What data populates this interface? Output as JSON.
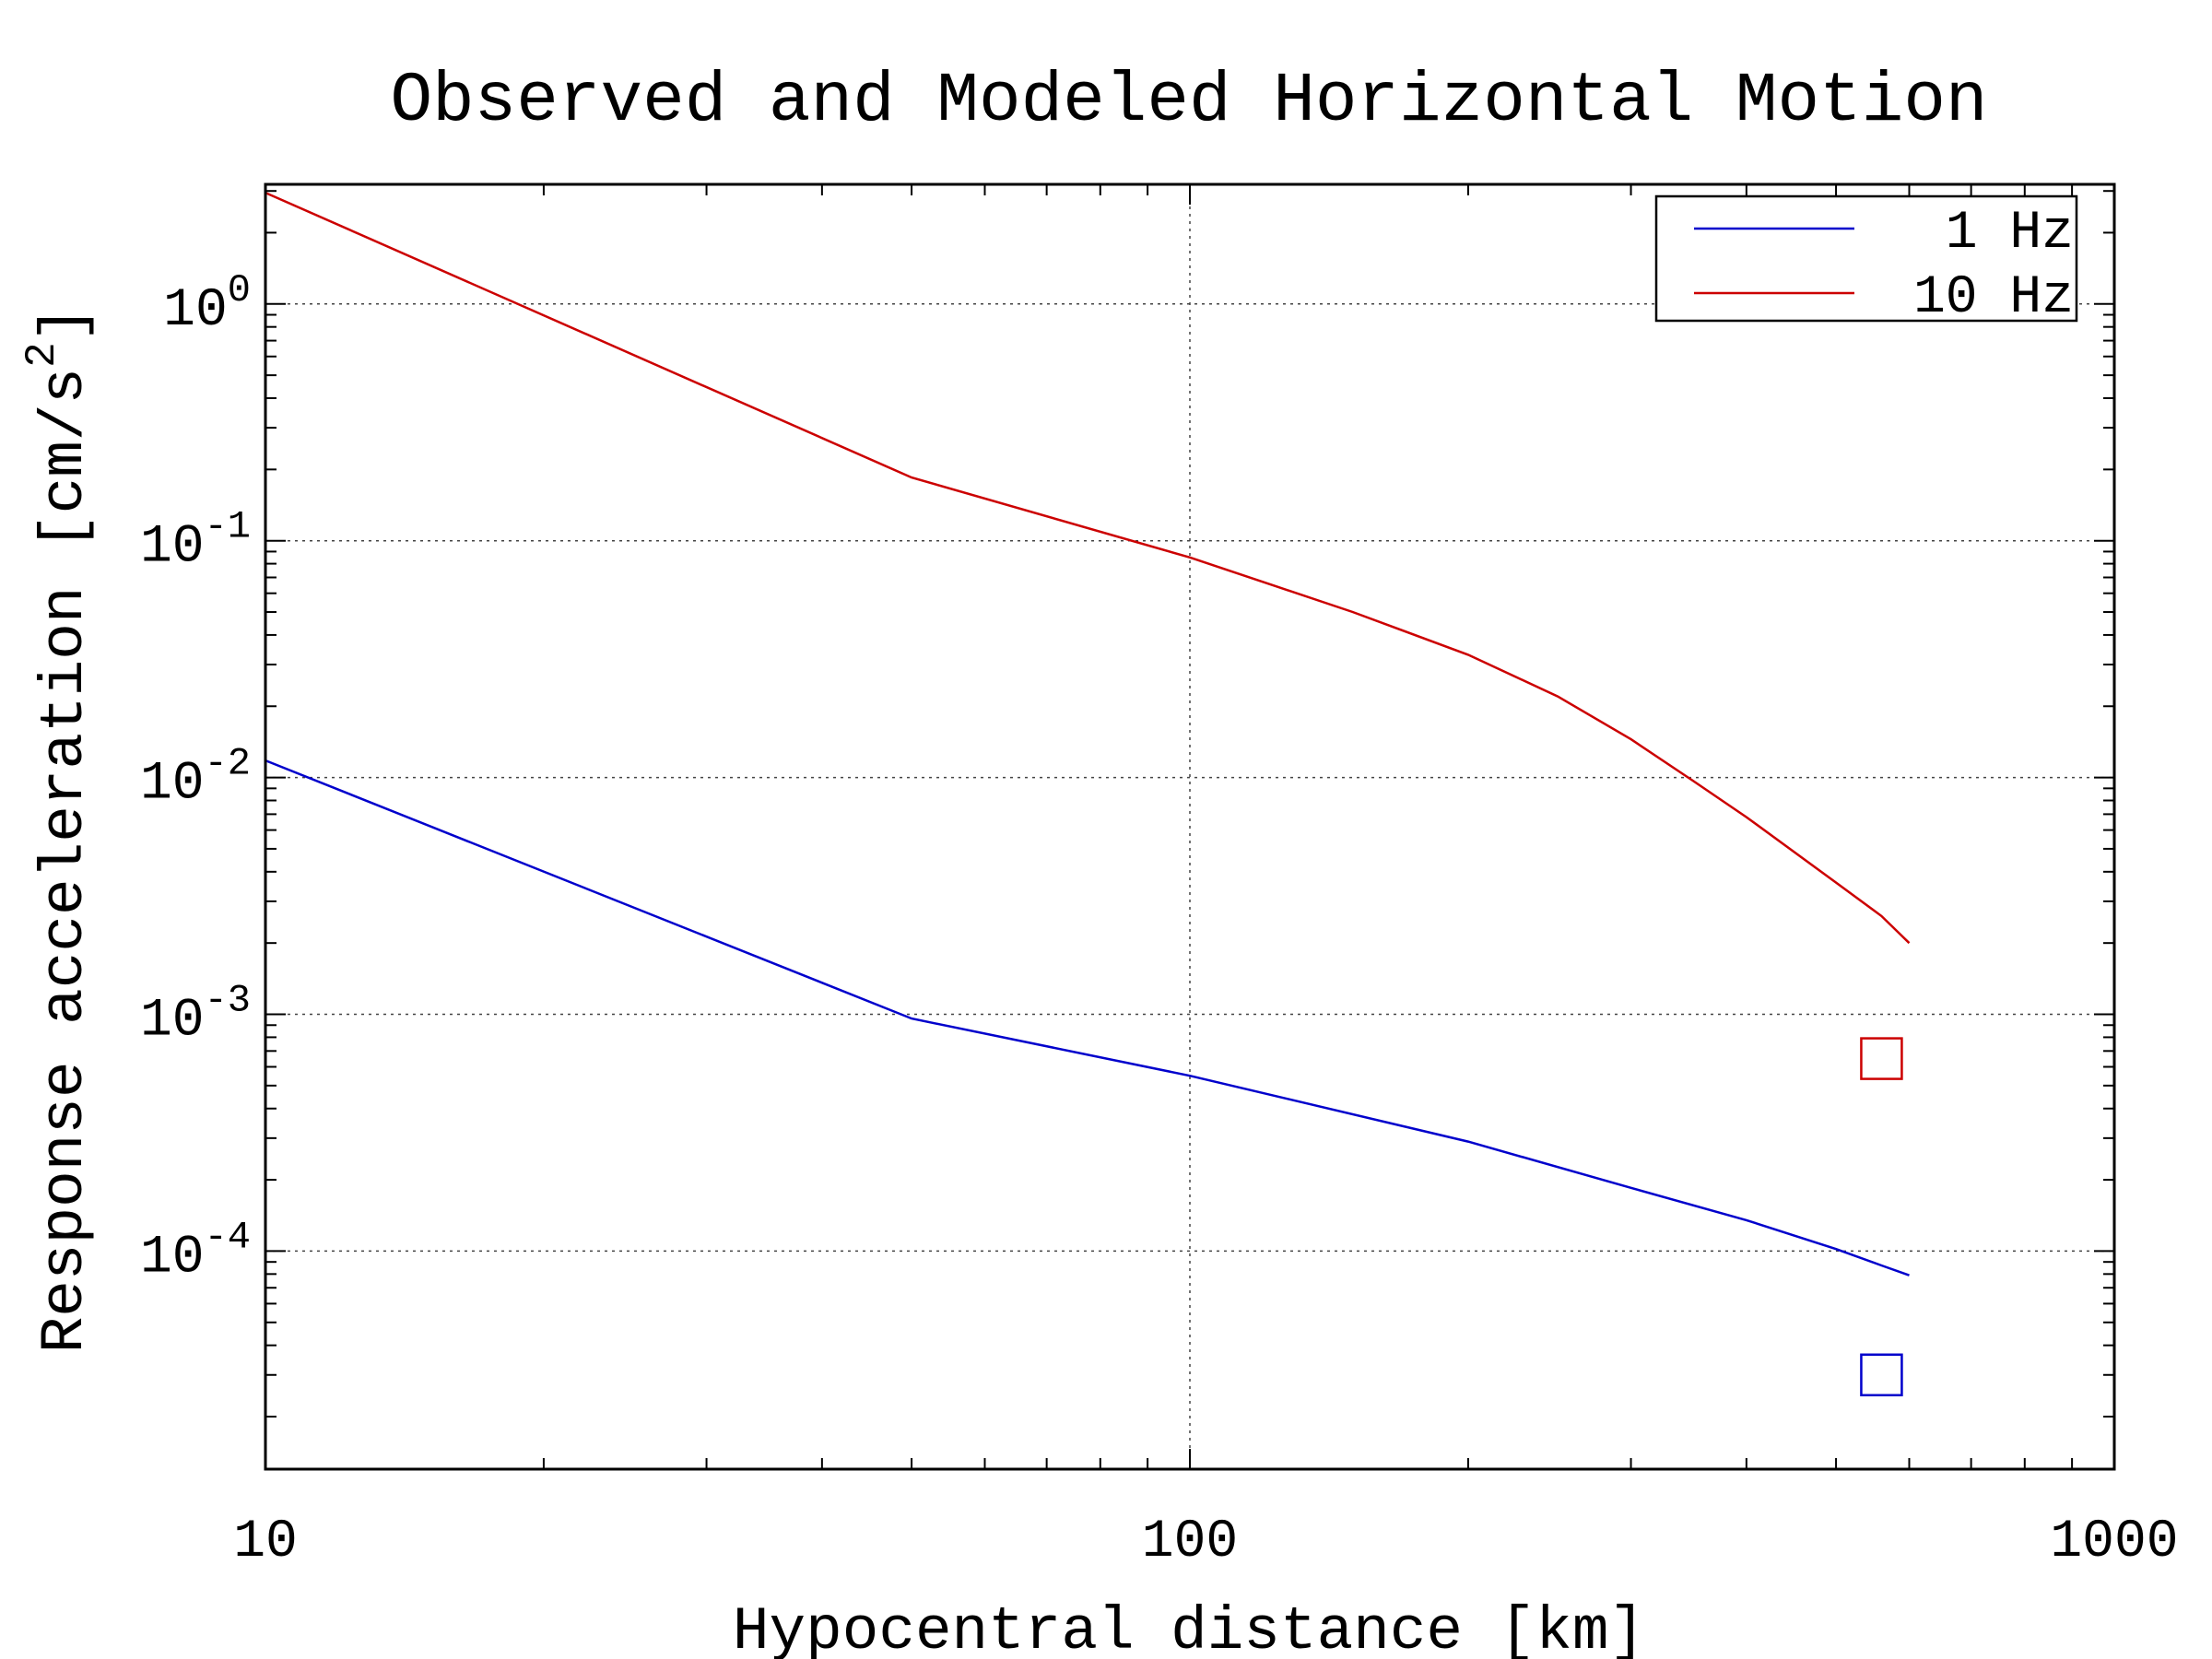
{
  "chart_data": {
    "type": "line",
    "title": "Observed and Modeled Horizontal Motion",
    "xlabel": "Hypocentral distance [km]",
    "ylabel": "Response acceleration [cm/s^2]",
    "xscale": "log",
    "yscale": "log",
    "xlim": [
      10,
      1000
    ],
    "ylim": [
      1.2e-05,
      3.2
    ],
    "x_tick_labels": [
      "10",
      "100",
      "1000"
    ],
    "y_tick_labels": [
      {
        "base": "10",
        "exp": "0"
      },
      {
        "base": "10",
        "exp": "-1"
      },
      {
        "base": "10",
        "exp": "-2"
      },
      {
        "base": "10",
        "exp": "-3"
      },
      {
        "base": "10",
        "exp": "-4"
      }
    ],
    "grid": true,
    "legend_position": "top-right",
    "series": [
      {
        "name": "1 Hz",
        "color": "#0000cc",
        "x": [
          10,
          50,
          100,
          200,
          300,
          400,
          500,
          560,
          600
        ],
        "y": [
          0.0118,
          0.00096,
          0.00055,
          0.00029,
          0.000185,
          0.000135,
          0.000102,
          8.7e-05,
          7.9e-05
        ]
      },
      {
        "name": "10 Hz",
        "color": "#cc0000",
        "x": [
          10,
          50,
          100,
          150,
          200,
          250,
          300,
          350,
          400,
          500,
          560,
          600
        ],
        "y": [
          2.95,
          0.185,
          0.085,
          0.05,
          0.033,
          0.022,
          0.0145,
          0.0097,
          0.0068,
          0.0036,
          0.0026,
          0.002
        ]
      }
    ],
    "observed": [
      {
        "series": "1 Hz",
        "color": "#0000cc",
        "x": 560,
        "y": 3e-05
      },
      {
        "series": "10 Hz",
        "color": "#cc0000",
        "x": 560,
        "y": 0.00065
      }
    ]
  }
}
